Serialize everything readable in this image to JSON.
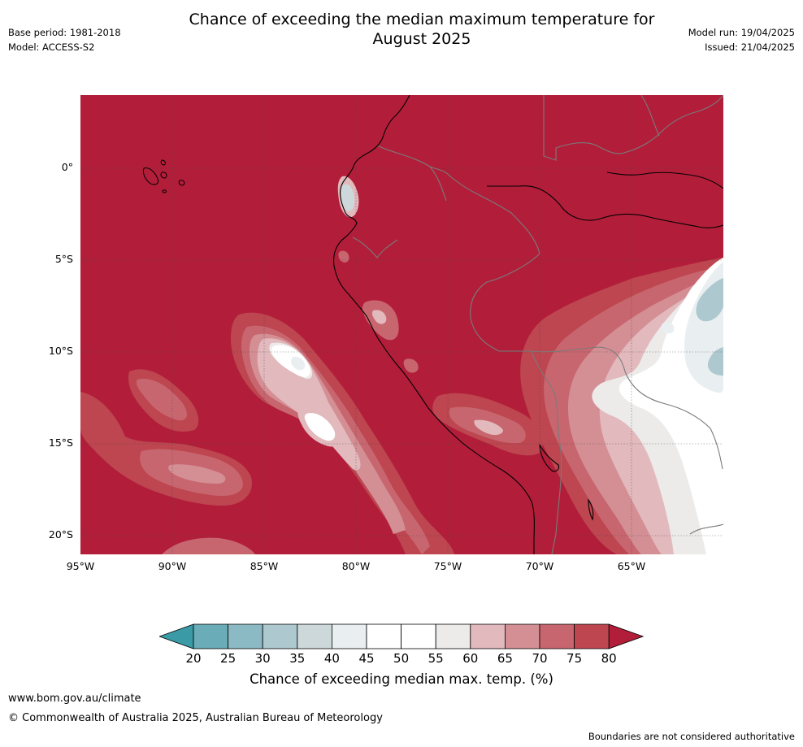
{
  "title_line1": "Chance of exceeding the median maximum temperature for",
  "title_line2": "August 2025",
  "base_period": "Base period: 1981-2018",
  "model": "Model: ACCESS-S2",
  "model_run": "Model run: 19/04/2025",
  "issued": "Issued: 21/04/2025",
  "lat_labels": [
    "0°",
    "5°S",
    "10°S",
    "15°S",
    "20°S"
  ],
  "lon_labels": [
    "95°W",
    "90°W",
    "85°W",
    "80°W",
    "75°W",
    "70°W",
    "65°W"
  ],
  "colorbar": {
    "ticks": [
      "20",
      "25",
      "30",
      "35",
      "40",
      "45",
      "50",
      "55",
      "60",
      "65",
      "70",
      "75",
      "80"
    ],
    "colors": [
      "#3a9aa6",
      "#6aacb8",
      "#8cbac4",
      "#adc8ce",
      "#cdd8db",
      "#e9eff1",
      "#ffffff",
      "#ffffff",
      "#ecebea",
      "#e2b9bd",
      "#d48f95",
      "#c8666f",
      "#bd4650",
      "#b21e3a"
    ],
    "title": "Chance of exceeding median max. temp. (%)"
  },
  "map_colors": {
    "base": "#b21e3a",
    "c75": "#bd4650",
    "c70": "#c8666f",
    "c65": "#d48f95",
    "c60": "#e2b9bd",
    "c55": "#ecebea",
    "c50": "#ffffff",
    "c40": "#e9eff1",
    "c35": "#adc8ce",
    "coast": "#000000",
    "border": "#7a7a7a"
  },
  "footer": {
    "url": "www.bom.gov.au/climate",
    "copyright": "© Commonwealth of Australia 2025, Australian Bureau of Meteorology",
    "disclaimer": "Boundaries are not considered authoritative"
  }
}
